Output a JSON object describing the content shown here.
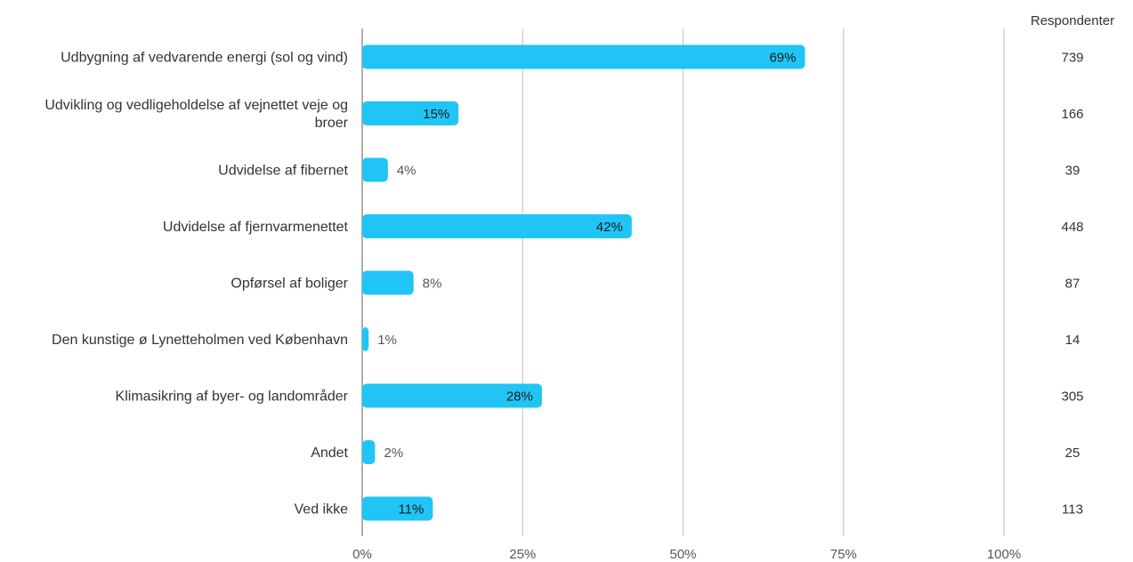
{
  "chart_data": {
    "type": "bar",
    "orientation": "horizontal",
    "categories": [
      [
        "Udbygning af vedvarende energi (sol og vind)"
      ],
      [
        "Udvikling og vedligeholdelse af vejnettet veje og",
        "broer"
      ],
      [
        "Udvidelse af fibernet"
      ],
      [
        "Udvidelse af fjernvarmenettet"
      ],
      [
        "Opførsel af boliger"
      ],
      [
        "Den kunstige ø Lynetteholmen ved København"
      ],
      [
        "Klimasikring af byer- og landområder"
      ],
      [
        "Andet"
      ],
      [
        "Ved ikke"
      ]
    ],
    "values": [
      69,
      15,
      4,
      42,
      8,
      1,
      28,
      2,
      11
    ],
    "value_labels": [
      "69%",
      "15%",
      "4%",
      "42%",
      "8%",
      "1%",
      "28%",
      "2%",
      "11%"
    ],
    "respondents_header": "Respondenter",
    "respondents": [
      "739",
      "166",
      "39",
      "448",
      "87",
      "14",
      "305",
      "25",
      "113"
    ],
    "xlim": [
      0,
      100
    ],
    "x_ticks": [
      0,
      25,
      50,
      75,
      100
    ],
    "x_tick_labels": [
      "0%",
      "25%",
      "50%",
      "75%",
      "100%"
    ],
    "grid": true,
    "bar_color": "#21C5F5",
    "grid_color": "#C8C8C8",
    "axis_color": "#999999"
  }
}
